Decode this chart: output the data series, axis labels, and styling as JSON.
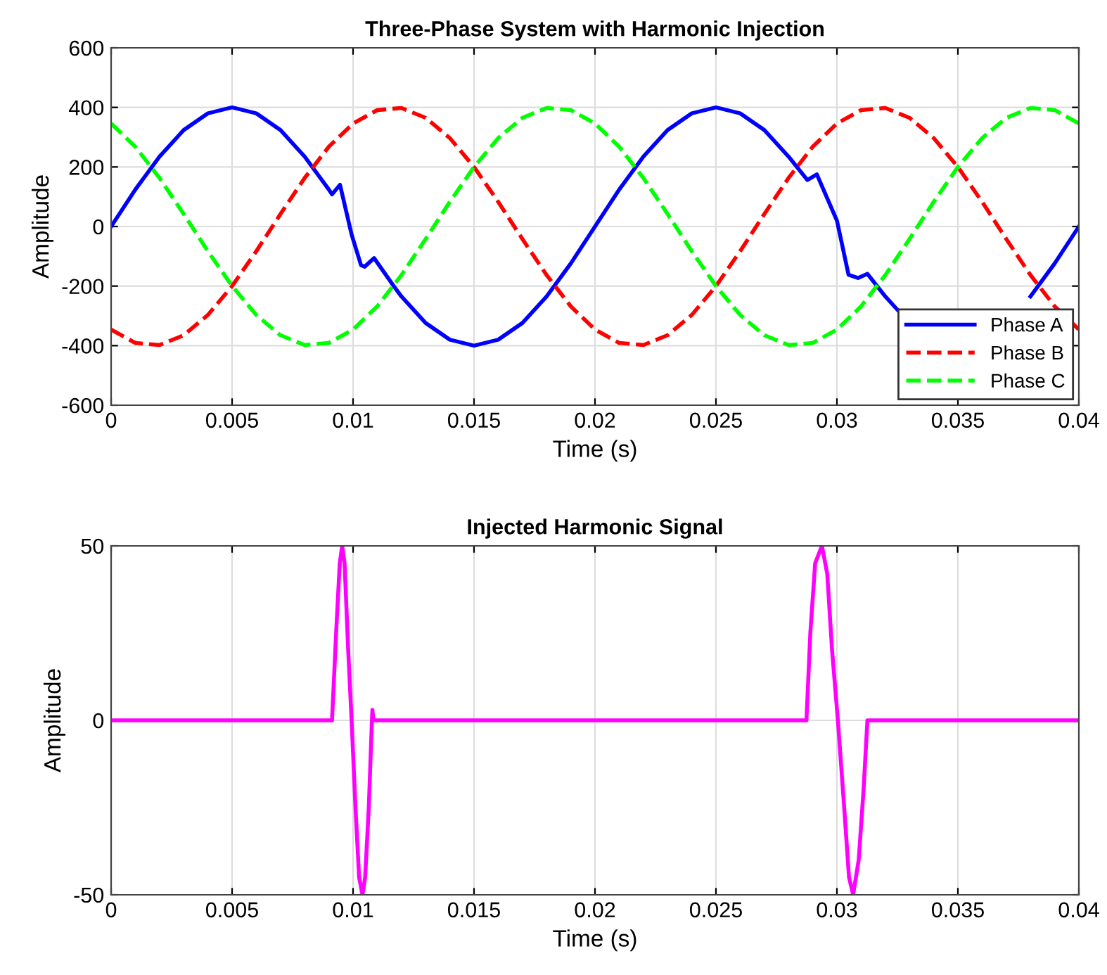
{
  "chart_data": [
    {
      "type": "line",
      "title": "Three-Phase System with Harmonic Injection",
      "xlabel": "Time (s)",
      "ylabel": "Amplitude",
      "x": [
        0,
        0.001,
        0.002,
        0.003,
        0.004,
        0.005,
        0.006,
        0.007,
        0.008,
        0.009,
        0.01,
        0.011,
        0.012,
        0.013,
        0.014,
        0.015,
        0.016,
        0.017,
        0.018,
        0.019,
        0.02,
        0.021,
        0.022,
        0.023,
        0.024,
        0.025,
        0.026,
        0.027,
        0.028,
        0.029,
        0.03,
        0.031,
        0.032,
        0.033,
        0.034,
        0.035,
        0.036,
        0.037,
        0.038,
        0.039,
        0.04
      ],
      "series": [
        {
          "name": "Phase A",
          "color": "#0000ff",
          "line_style": "solid",
          "x": [
            0,
            0.001,
            0.002,
            0.003,
            0.004,
            0.005,
            0.006,
            0.007,
            0.008,
            0.009,
            0.00913,
            0.00946,
            0.00994,
            0.01033,
            0.01048,
            0.01087,
            0.01169,
            0.012,
            0.013,
            0.014,
            0.015,
            0.016,
            0.017,
            0.018,
            0.019,
            0.02,
            0.021,
            0.022,
            0.023,
            0.024,
            0.025,
            0.026,
            0.027,
            0.028,
            0.02878,
            0.02917,
            0.03,
            0.03048,
            0.03087,
            0.03126,
            0.032,
            0.033,
            0.034,
            0.035,
            0.036,
            0.037,
            0.038,
            0.039,
            0.04
          ],
          "values": [
            0,
            124,
            235,
            324,
            380,
            400,
            380,
            324,
            235,
            124,
            108,
            140,
            -27,
            -130,
            -135,
            -106,
            -201,
            -235,
            -324,
            -380,
            -400,
            -380,
            -324,
            -235,
            -124,
            0,
            124,
            235,
            324,
            380,
            400,
            380,
            324,
            235,
            156,
            175,
            20,
            -162,
            -173,
            -159,
            -235,
            -324,
            null,
            null,
            null,
            null,
            -235,
            -124,
            0
          ]
        },
        {
          "name": "Phase B",
          "color": "#ff0000",
          "line_style": "dashed",
          "values": [
            -346,
            -391,
            -398,
            -365,
            -297,
            -200,
            -83,
            42,
            163,
            268,
            346,
            391,
            398,
            365,
            297,
            200,
            83,
            -42,
            -163,
            -268,
            -346,
            -391,
            -398,
            -365,
            -297,
            -200,
            -83,
            42,
            163,
            268,
            346,
            391,
            398,
            365,
            297,
            200,
            83,
            -42,
            -163,
            -268,
            -346
          ]
        },
        {
          "name": "Phase C",
          "color": "#00ff00",
          "line_style": "dashed",
          "values": [
            346,
            268,
            163,
            42,
            -83,
            -200,
            -297,
            -365,
            -398,
            -391,
            -346,
            -268,
            -163,
            -42,
            83,
            200,
            297,
            365,
            398,
            391,
            346,
            268,
            163,
            42,
            -83,
            -200,
            -297,
            -365,
            -398,
            -391,
            -346,
            -268,
            -163,
            -42,
            83,
            200,
            297,
            365,
            398,
            391,
            346
          ]
        }
      ],
      "xlim": [
        0,
        0.04
      ],
      "xticks": [
        0,
        0.005,
        0.01,
        0.015,
        0.02,
        0.025,
        0.03,
        0.035,
        0.04
      ],
      "ylim": [
        -600,
        600
      ],
      "yticks": [
        -600,
        -400,
        -200,
        0,
        200,
        400,
        600
      ],
      "grid": true,
      "legend": "bottom right"
    },
    {
      "type": "line",
      "title": "Injected Harmonic Signal",
      "xlabel": "Time (s)",
      "ylabel": "Amplitude",
      "x": [
        0,
        0.00913,
        0.0093,
        0.00945,
        0.00955,
        0.00965,
        0.0098,
        0.00994,
        0.0101,
        0.01025,
        0.01039,
        0.0105,
        0.01065,
        0.01078,
        0.0108,
        0.01084,
        0.02874,
        0.0289,
        0.0291,
        0.02938,
        0.0296,
        0.0298,
        0.03004,
        0.0303,
        0.0305,
        0.03067,
        0.0309,
        0.0311,
        0.03126,
        0.04
      ],
      "series": [
        {
          "color": "#ff00ff",
          "line_style": "solid",
          "values": [
            0,
            0,
            25,
            45,
            50,
            45,
            20,
            0,
            -25,
            -45,
            -50,
            -45,
            -25,
            0,
            3,
            0,
            0,
            25,
            45,
            50,
            42,
            20,
            0,
            -25,
            -45,
            -50,
            -40,
            -20,
            0,
            0
          ]
        }
      ],
      "xlim": [
        0,
        0.04
      ],
      "xticks": [
        0,
        0.005,
        0.01,
        0.015,
        0.02,
        0.025,
        0.03,
        0.035,
        0.04
      ],
      "ylim": [
        -50,
        50
      ],
      "yticks": [
        -50,
        0,
        50
      ],
      "grid": true
    }
  ]
}
